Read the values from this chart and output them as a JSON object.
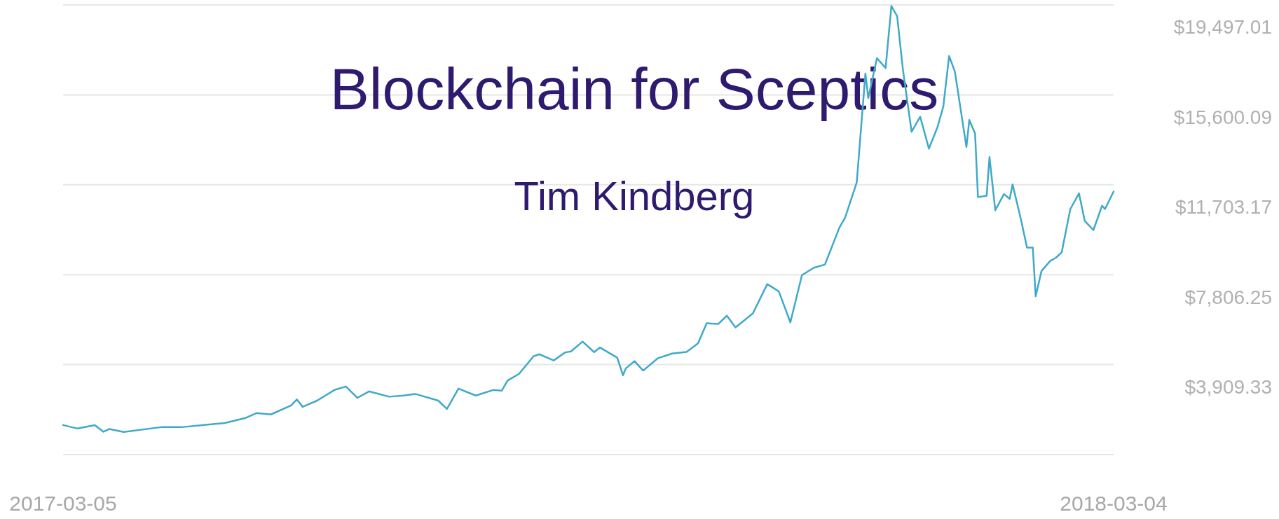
{
  "chart_data": {
    "type": "line",
    "title": "Blockchain for Sceptics",
    "subtitle": "Tim Kindberg",
    "x": [
      "2017-03-05",
      "2017-03-10",
      "2017-03-16",
      "2017-03-19",
      "2017-03-21",
      "2017-03-26",
      "2017-04-08",
      "2017-04-15",
      "2017-04-26",
      "2017-04-30",
      "2017-05-07",
      "2017-05-11",
      "2017-05-16",
      "2017-05-23",
      "2017-05-25",
      "2017-05-27",
      "2017-06-01",
      "2017-06-07",
      "2017-06-11",
      "2017-06-15",
      "2017-06-19",
      "2017-06-26",
      "2017-07-01",
      "2017-07-05",
      "2017-07-13",
      "2017-07-16",
      "2017-07-20",
      "2017-07-26",
      "2017-08-01",
      "2017-08-04",
      "2017-08-06",
      "2017-08-10",
      "2017-08-15",
      "2017-08-17",
      "2017-08-22",
      "2017-08-26",
      "2017-08-28",
      "2017-09-01",
      "2017-09-05",
      "2017-09-07",
      "2017-09-13",
      "2017-09-15",
      "2017-09-16",
      "2017-09-19",
      "2017-09-22",
      "2017-09-27",
      "2017-10-02",
      "2017-10-07",
      "2017-10-11",
      "2017-10-14",
      "2017-10-18",
      "2017-10-21",
      "2017-10-24",
      "2017-10-30",
      "2017-11-04",
      "2017-11-08",
      "2017-11-12",
      "2017-11-16",
      "2017-11-20",
      "2017-11-24",
      "2017-11-29",
      "2017-12-01",
      "2017-12-05",
      "2017-12-08",
      "2017-12-09",
      "2017-12-12",
      "2017-12-15",
      "2017-12-17",
      "2017-12-19",
      "2017-12-21",
      "2017-12-24",
      "2017-12-27",
      "2017-12-30",
      "2018-01-02",
      "2018-01-04",
      "2018-01-06",
      "2018-01-08",
      "2018-01-12",
      "2018-01-13",
      "2018-01-15",
      "2018-01-16",
      "2018-01-19",
      "2018-01-20",
      "2018-01-22",
      "2018-01-25",
      "2018-01-27",
      "2018-01-28",
      "2018-01-31",
      "2018-02-02",
      "2018-02-04",
      "2018-02-05",
      "2018-02-07",
      "2018-02-10",
      "2018-02-12",
      "2018-02-14",
      "2018-02-17",
      "2018-02-20",
      "2018-02-22",
      "2018-02-25",
      "2018-02-28",
      "2018-03-01",
      "2018-03-04"
    ],
    "series": [
      {
        "color": "#3fa9c9",
        "values": [
          1290,
          1140,
          1290,
          1000,
          1120,
          990,
          1200,
          1200,
          1330,
          1380,
          1590,
          1810,
          1750,
          2140,
          2400,
          2080,
          2350,
          2810,
          2960,
          2470,
          2750,
          2520,
          2570,
          2640,
          2350,
          1990,
          2870,
          2570,
          2810,
          2780,
          3220,
          3510,
          4270,
          4360,
          4090,
          4440,
          4480,
          4910,
          4450,
          4650,
          4210,
          3450,
          3750,
          4060,
          3650,
          4180,
          4390,
          4460,
          4830,
          5700,
          5670,
          6030,
          5520,
          6130,
          7400,
          7080,
          5740,
          7780,
          8100,
          8250,
          9850,
          10290,
          11810,
          16520,
          15460,
          17190,
          16760,
          19450,
          19010,
          16690,
          14000,
          14650,
          13270,
          14210,
          15090,
          17280,
          16610,
          13340,
          14510,
          13920,
          11170,
          11230,
          12900,
          10600,
          11300,
          11090,
          11720,
          10140,
          8980,
          8980,
          6870,
          7960,
          8400,
          8540,
          8770,
          10650,
          11330,
          10140,
          9740,
          10800,
          10650,
          11410
        ]
      }
    ],
    "xlim": [
      "2017-03-05",
      "2018-03-04"
    ],
    "xticks": [
      {
        "value": "2017-03-05",
        "label": "2017-03-05"
      },
      {
        "value": "2018-03-04",
        "label": "2018-03-04"
      }
    ],
    "ylim": [
      12.41,
      19497.01
    ],
    "yticks": [
      {
        "value": 12.41,
        "label": null
      },
      {
        "value": 3909.33,
        "label": "$3,909.33"
      },
      {
        "value": 7806.25,
        "label": "$7,806.25"
      },
      {
        "value": 11703.17,
        "label": "$11,703.17"
      },
      {
        "value": 15600.09,
        "label": "$15,600.09"
      },
      {
        "value": 19497.01,
        "label": "$19,497.01"
      }
    ],
    "grid": "y"
  }
}
